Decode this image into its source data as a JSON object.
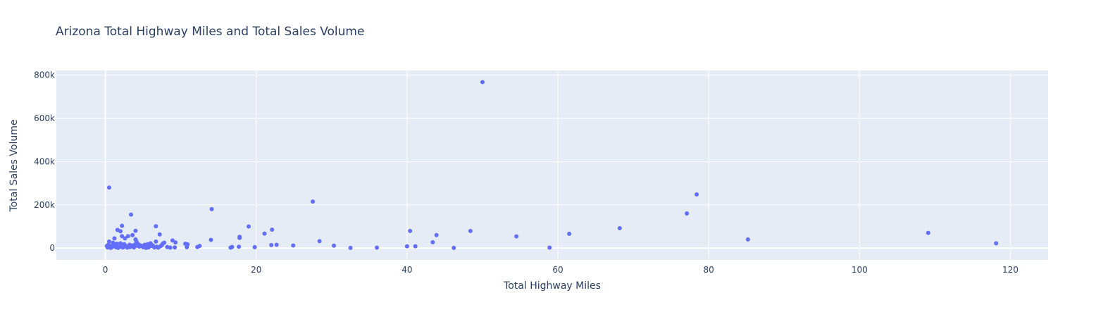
{
  "chart_data": {
    "type": "scatter",
    "title": "Arizona Total Highway Miles and Total Sales Volume",
    "xlabel": "Total Highway Miles",
    "ylabel": "Total Sales Volume",
    "xlim": [
      -6.5,
      125
    ],
    "ylim": [
      -55000,
      822000
    ],
    "x_ticks": [
      0,
      20,
      40,
      60,
      80,
      100,
      120
    ],
    "x_tick_labels": [
      "0",
      "20",
      "40",
      "60",
      "80",
      "100",
      "120"
    ],
    "y_ticks": [
      0,
      200000,
      400000,
      600000,
      800000
    ],
    "y_tick_labels": [
      "0",
      "200k",
      "400k",
      "600k",
      "800k"
    ],
    "grid": true,
    "colors": {
      "marker": "#636efa",
      "plot_bg": "#e5ecf6",
      "grid": "#ffffff",
      "text": "#2a3f5f"
    },
    "points": [
      [
        50.0,
        768000
      ],
      [
        0.5,
        280000
      ],
      [
        27.5,
        215000
      ],
      [
        14.1,
        180000
      ],
      [
        3.4,
        155000
      ],
      [
        78.4,
        248000
      ],
      [
        77.1,
        160000
      ],
      [
        6.7,
        101000
      ],
      [
        19.0,
        100000
      ],
      [
        2.2,
        103000
      ],
      [
        68.2,
        92000
      ],
      [
        1.6,
        84000
      ],
      [
        2.0,
        78000
      ],
      [
        22.1,
        85000
      ],
      [
        4.0,
        80000
      ],
      [
        40.4,
        79000
      ],
      [
        48.4,
        79000
      ],
      [
        109.1,
        70000
      ],
      [
        61.5,
        66000
      ],
      [
        21.1,
        67000
      ],
      [
        7.2,
        63000
      ],
      [
        3.6,
        60000
      ],
      [
        3.0,
        55000
      ],
      [
        2.2,
        55000
      ],
      [
        1.2,
        45000
      ],
      [
        17.8,
        47000
      ],
      [
        17.8,
        52000
      ],
      [
        43.9,
        60000
      ],
      [
        54.5,
        54000
      ],
      [
        85.2,
        40000
      ],
      [
        14.0,
        38000
      ],
      [
        2.6,
        45000
      ],
      [
        4.0,
        40000
      ],
      [
        4.1,
        32000
      ],
      [
        8.9,
        35000
      ],
      [
        6.7,
        30000
      ],
      [
        9.3,
        26000
      ],
      [
        28.4,
        32000
      ],
      [
        43.4,
        27000
      ],
      [
        118.1,
        22000
      ],
      [
        0.5,
        30000
      ],
      [
        1.0,
        25000
      ],
      [
        1.5,
        20000
      ],
      [
        2.0,
        22000
      ],
      [
        2.5,
        18000
      ],
      [
        3.2,
        15000
      ],
      [
        3.5,
        12000
      ],
      [
        4.3,
        20000
      ],
      [
        4.8,
        10000
      ],
      [
        5.2,
        15000
      ],
      [
        5.6,
        18000
      ],
      [
        6.0,
        22000
      ],
      [
        6.3,
        12000
      ],
      [
        7.6,
        20000
      ],
      [
        7.8,
        25000
      ],
      [
        10.6,
        20000
      ],
      [
        10.9,
        17000
      ],
      [
        22.0,
        14000
      ],
      [
        22.7,
        15000
      ],
      [
        24.9,
        12000
      ],
      [
        30.3,
        11000
      ],
      [
        40.0,
        8000
      ],
      [
        41.1,
        8000
      ],
      [
        12.5,
        10000
      ],
      [
        12.2,
        5000
      ],
      [
        0.2,
        10000
      ],
      [
        0.3,
        3000
      ],
      [
        0.6,
        6000
      ],
      [
        0.8,
        2000
      ],
      [
        1.1,
        8000
      ],
      [
        1.4,
        4000
      ],
      [
        1.7,
        1000
      ],
      [
        1.9,
        6000
      ],
      [
        2.3,
        3000
      ],
      [
        2.7,
        9000
      ],
      [
        2.9,
        2000
      ],
      [
        3.3,
        5000
      ],
      [
        3.8,
        3000
      ],
      [
        4.5,
        7000
      ],
      [
        5.0,
        4000
      ],
      [
        5.4,
        1000
      ],
      [
        5.8,
        6000
      ],
      [
        6.5,
        3000
      ],
      [
        7.0,
        2000
      ],
      [
        7.3,
        8000
      ],
      [
        8.2,
        5000
      ],
      [
        8.6,
        2000
      ],
      [
        9.2,
        3000
      ],
      [
        10.8,
        4000
      ],
      [
        16.6,
        2000
      ],
      [
        16.8,
        5000
      ],
      [
        17.7,
        6000
      ],
      [
        19.8,
        4000
      ],
      [
        32.5,
        1000
      ],
      [
        36.0,
        2000
      ],
      [
        46.2,
        1000
      ],
      [
        58.9,
        2000
      ],
      [
        0.4,
        15000
      ],
      [
        0.9,
        12000
      ],
      [
        1.3,
        18000
      ],
      [
        2.1,
        10000
      ],
      [
        2.6,
        14000
      ],
      [
        3.1,
        7000
      ],
      [
        3.7,
        9000
      ],
      [
        4.2,
        11000
      ],
      [
        4.6,
        13000
      ],
      [
        5.3,
        8000
      ],
      [
        6.1,
        10000
      ],
      [
        6.8,
        6000
      ],
      [
        7.5,
        14000
      ],
      [
        0.7,
        1000
      ],
      [
        1.5,
        9000
      ],
      [
        2.4,
        5000
      ],
      [
        3.9,
        16000
      ],
      [
        5.7,
        3000
      ]
    ]
  }
}
